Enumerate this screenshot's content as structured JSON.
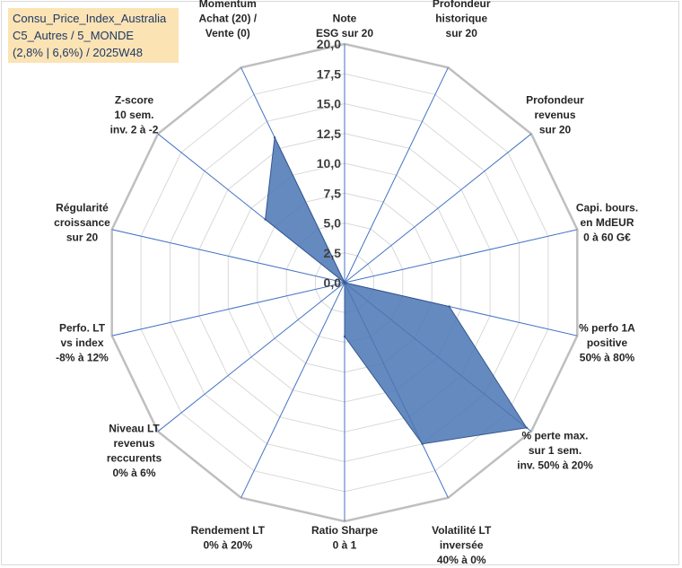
{
  "chart_data": {
    "type": "radar",
    "title_lines": [
      "Consu_Price_Index_Australia",
      "C5_Autres / 5_MONDE",
      "(2,8% | 6,6%) / 2025W48"
    ],
    "r_range": [
      0,
      20
    ],
    "r_ticks": [
      "0,0",
      "2,5",
      "5,0",
      "7,5",
      "10,0",
      "12,5",
      "15,0",
      "17,5",
      "20,0"
    ],
    "axes": [
      {
        "label": [
          "Note",
          "ESG sur 20"
        ]
      },
      {
        "label": [
          "Profondeur",
          "historique",
          "sur 20"
        ]
      },
      {
        "label": [
          "Profondeur",
          "revenus",
          "sur 20"
        ]
      },
      {
        "label": [
          "Capi. bours.",
          "en MdEUR",
          "0 à 60 G€"
        ]
      },
      {
        "label": [
          "% perfo 1A",
          "positive",
          "50% à 80%"
        ]
      },
      {
        "label": [
          "% perte max.",
          "sur 1 sem.",
          "inv. 50% à 20%"
        ]
      },
      {
        "label": [
          "Volatilité LT",
          "inversée",
          "40% à 0%"
        ]
      },
      {
        "label": [
          "Ratio Sharpe",
          "0 à 1"
        ]
      },
      {
        "label": [
          "Rendement LT",
          "0% à 20%"
        ]
      },
      {
        "label": [
          "Niveau LT",
          "revenus",
          "reccurents",
          "0% à 6%"
        ]
      },
      {
        "label": [
          "Perfo. LT",
          "vs index",
          "-8% à 12%"
        ]
      },
      {
        "label": [
          "Régularité",
          "croissance",
          "sur 20"
        ]
      },
      {
        "label": [
          "Z-score",
          "10 sem.",
          "inv. 2 à -2"
        ]
      },
      {
        "label": [
          "Momentum",
          "Achat (20) /",
          "Vente (0)"
        ]
      }
    ],
    "series": [
      {
        "name": "Consu_Price_Index_Australia",
        "values": [
          0,
          0,
          0,
          0,
          9.0,
          19.5,
          15.0,
          4.5,
          0,
          0,
          0,
          0,
          8.5,
          13.5
        ],
        "fill": "#4a76b4",
        "stroke": "#35588f"
      }
    ]
  }
}
